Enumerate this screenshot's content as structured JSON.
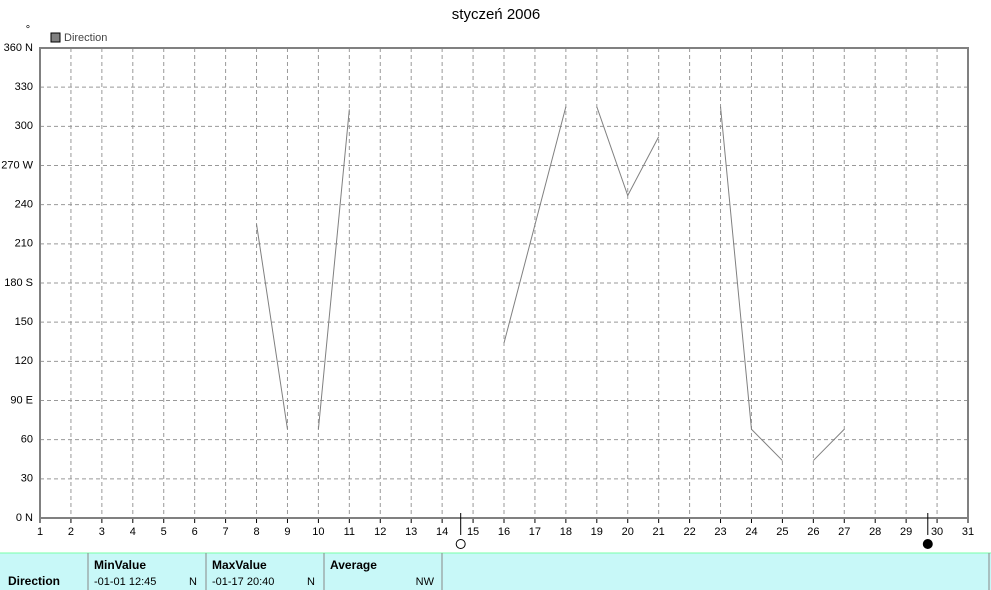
{
  "chart_data": {
    "type": "line",
    "title": "styczeń 2006",
    "y_unit": "°",
    "legend": "top-left",
    "series": [
      {
        "name": "Direction",
        "color": "#808080",
        "x": [
          8,
          9,
          9.5,
          10,
          11,
          11.5,
          16,
          18,
          18.5,
          19,
          20,
          21,
          21.5,
          23,
          24,
          25,
          25.5,
          26,
          27
        ],
        "values": [
          225,
          68,
          null,
          68,
          313,
          null,
          134,
          315,
          null,
          315,
          247,
          292,
          null,
          315,
          68,
          44,
          null,
          44,
          68
        ]
      }
    ],
    "xlim": [
      1,
      31
    ],
    "xticks": [
      1,
      2,
      3,
      4,
      5,
      6,
      7,
      8,
      9,
      10,
      11,
      12,
      13,
      14,
      15,
      16,
      17,
      18,
      19,
      20,
      21,
      22,
      23,
      24,
      25,
      26,
      27,
      28,
      29,
      30,
      31
    ],
    "ylim": [
      0,
      360
    ],
    "yticks": [
      {
        "value": 0,
        "label": "0 N"
      },
      30,
      60,
      {
        "value": 90,
        "label": "90 E"
      },
      120,
      150,
      {
        "value": 180,
        "label": "180 S"
      },
      210,
      240,
      {
        "value": 270,
        "label": "270 W"
      },
      300,
      330,
      {
        "value": 360,
        "label": "360 N"
      }
    ],
    "grid": true,
    "markers": [
      {
        "x": 14.6,
        "color": "#ffffff"
      },
      {
        "x": 29.7,
        "color": "#000000"
      }
    ]
  },
  "table": {
    "row_label": "Direction",
    "columns": [
      {
        "header": "MinValue",
        "time": "-01-01  12:45",
        "value": "N"
      },
      {
        "header": "MaxValue",
        "time": "-01-17  20:40",
        "value": "N"
      },
      {
        "header": "Average",
        "value": "NW"
      }
    ]
  }
}
